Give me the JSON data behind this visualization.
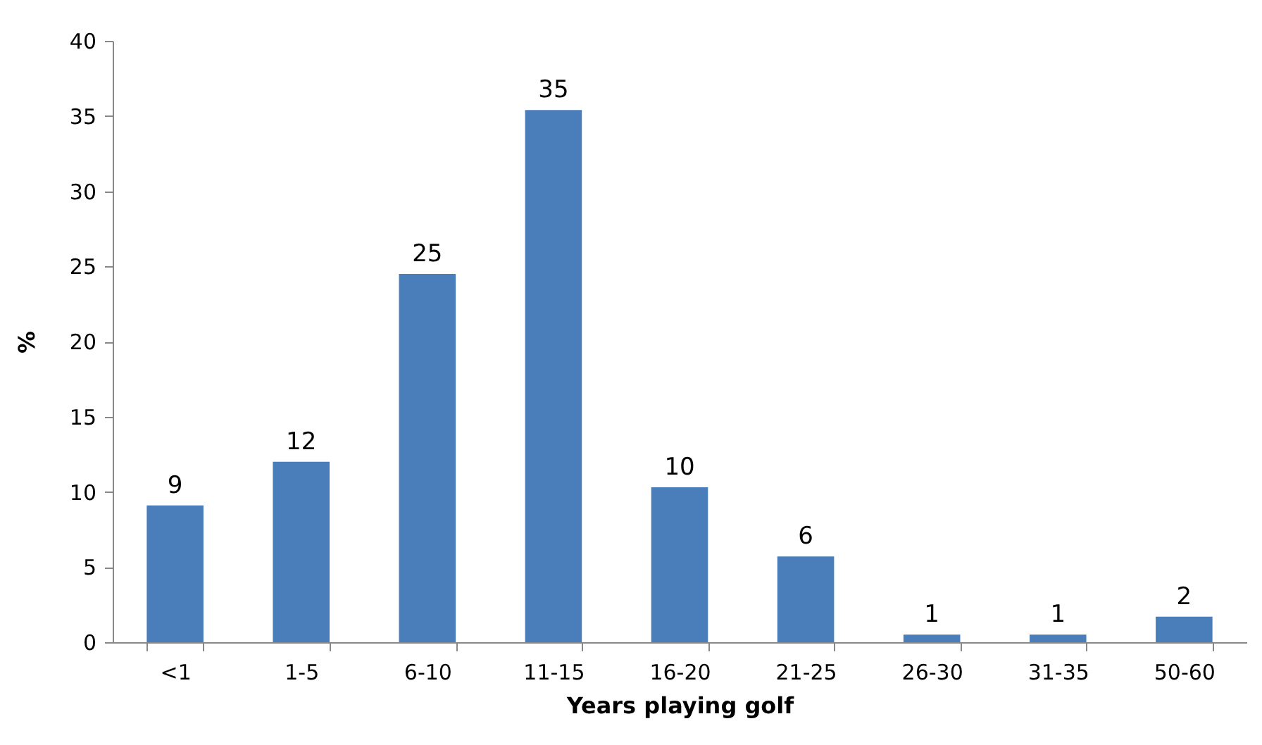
{
  "chart_data": {
    "type": "bar",
    "xlabel": "Years playing golf",
    "ylabel": "%",
    "categories": [
      "<1",
      "1-5",
      "6-10",
      "11-15",
      "16-20",
      "21-25",
      "26-30",
      "31-35",
      "50-60"
    ],
    "values": [
      9.1,
      12,
      24.5,
      35.4,
      10.3,
      5.7,
      0.5,
      0.5,
      1.7
    ],
    "value_labels": [
      "9",
      "12",
      "25",
      "35",
      "10",
      "6",
      "1",
      "1",
      "2"
    ],
    "color": "#4a7ebb",
    "ylim": [
      0,
      40
    ],
    "yticks": [
      0,
      5,
      10,
      15,
      20,
      25,
      30,
      35,
      40
    ],
    "grid": false
  }
}
